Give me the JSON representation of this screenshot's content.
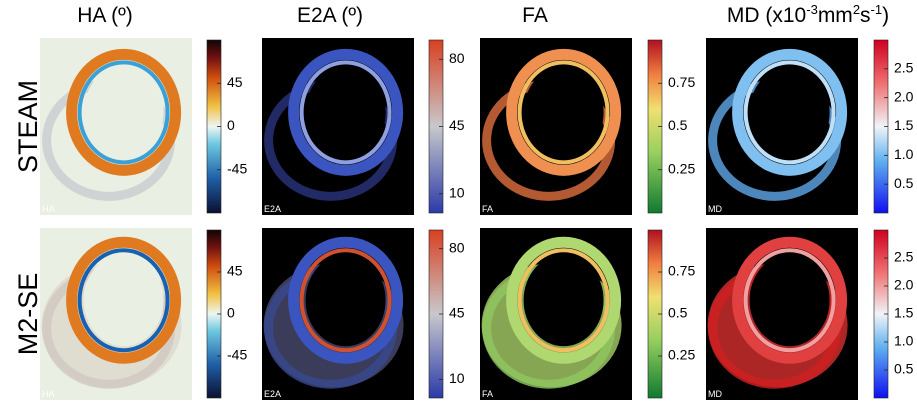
{
  "columns": [
    {
      "title": "HA (º)"
    },
    {
      "title": "E2A (º)"
    },
    {
      "title": "FA"
    },
    {
      "title_parts": [
        "MD (x10",
        "-3",
        "mm",
        "2",
        "s",
        "-1",
        ")"
      ]
    }
  ],
  "rows": [
    {
      "label": "STEAM",
      "panels": [
        {
          "tag": "HA",
          "colorbar": {
            "lim": [
              -90,
              90
            ],
            "ticks": [
              45,
              0,
              -45
            ]
          }
        },
        {
          "tag": "E2A",
          "colorbar": {
            "lim": [
              0,
              90
            ],
            "ticks": [
              80,
              45,
              10
            ]
          }
        },
        {
          "tag": "FA",
          "colorbar": {
            "lim": [
              0,
              1
            ],
            "ticks": [
              0.75,
              0.5,
              0.25
            ]
          }
        },
        {
          "tag": "MD",
          "colorbar": {
            "lim": [
              0,
              3
            ],
            "ticks": [
              2.5,
              {
                "value": 2,
                "label": "2.0"
              },
              1.5,
              {
                "value": 1,
                "label": "1.0"
              },
              0.5
            ]
          }
        }
      ]
    },
    {
      "label": "M2-SE",
      "panels": [
        {
          "tag": "HA",
          "colorbar": {
            "lim": [
              -90,
              90
            ],
            "ticks": [
              45,
              0,
              -45
            ]
          }
        },
        {
          "tag": "E2A",
          "colorbar": {
            "lim": [
              0,
              90
            ],
            "ticks": [
              80,
              45,
              10
            ]
          }
        },
        {
          "tag": "FA",
          "colorbar": {
            "lim": [
              0,
              1
            ],
            "ticks": [
              0.75,
              0.5,
              0.25
            ]
          }
        },
        {
          "tag": "MD",
          "colorbar": {
            "lim": [
              0,
              3
            ],
            "ticks": [
              2.5,
              {
                "value": 2,
                "label": "2.0"
              },
              1.5,
              {
                "value": 1,
                "label": "1.0"
              },
              0.5
            ]
          }
        }
      ]
    }
  ]
}
